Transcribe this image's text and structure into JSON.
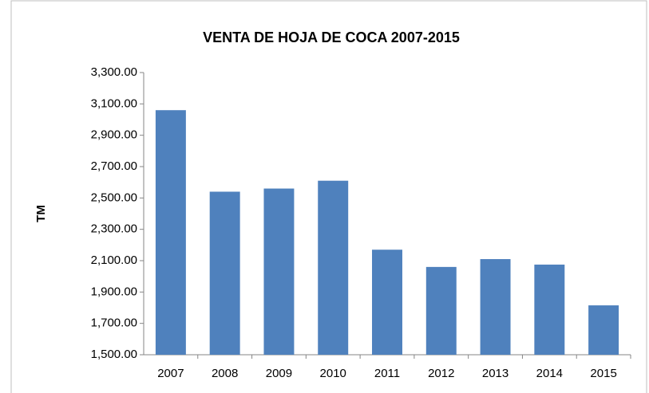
{
  "chart_data": {
    "type": "bar",
    "title": "VENTA DE HOJA DE COCA 2007-2015",
    "y_label": "TM",
    "categories": [
      "2007",
      "2008",
      "2009",
      "2010",
      "2011",
      "2012",
      "2013",
      "2014",
      "2015"
    ],
    "values": [
      3060,
      2540,
      2560,
      2610,
      2170,
      2060,
      2110,
      2075,
      1815
    ],
    "color": "#4f81bd",
    "ylim": [
      1500,
      3300
    ],
    "yticks": [
      {
        "value": 1500,
        "label": "1,500.00"
      },
      {
        "value": 1700,
        "label": "1,700.00"
      },
      {
        "value": 1900,
        "label": "1,900.00"
      },
      {
        "value": 2100,
        "label": "2,100.00"
      },
      {
        "value": 2300,
        "label": "2,300.00"
      },
      {
        "value": 2500,
        "label": "2,500.00"
      },
      {
        "value": 2700,
        "label": "2,700.00"
      },
      {
        "value": 2900,
        "label": "2,900.00"
      },
      {
        "value": 3100,
        "label": "3,100.00"
      },
      {
        "value": 3300,
        "label": "3,300.00"
      }
    ],
    "grid": false
  }
}
